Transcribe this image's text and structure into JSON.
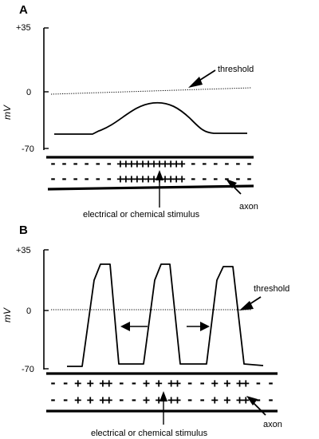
{
  "panels": [
    {
      "id": "A",
      "label": "A",
      "y_ticks": [
        "+35",
        "0",
        "-70"
      ],
      "y_unit": "mV",
      "threshold_label": "threshold",
      "axon_label": "axon",
      "stimulus_label": "electrical or chemical stimulus",
      "upper_charges": "-  -  -  -  -  -  ++++++++++++  -  -  -  -  -  -",
      "lower_charges": "-  -  -  -  -  -  ++++++++++++  -  -  -  -  -  -"
    },
    {
      "id": "B",
      "label": "B",
      "y_ticks": [
        "+35",
        "0",
        "-70"
      ],
      "y_unit": "mV",
      "threshold_label": "threshold",
      "axon_label": "axon",
      "stimulus_label": "electrical or chemical stimulus",
      "upper_charges": "-  -  +  +  ++  -  -  +  +  ++  -  -  +  +  ++  -  -",
      "lower_charges": "-  -  +  +  ++  -  -  +  +  ++  -  -  +  +  ++  -  -"
    }
  ],
  "colors": {
    "ink": "#000000",
    "background": "#ffffff"
  }
}
